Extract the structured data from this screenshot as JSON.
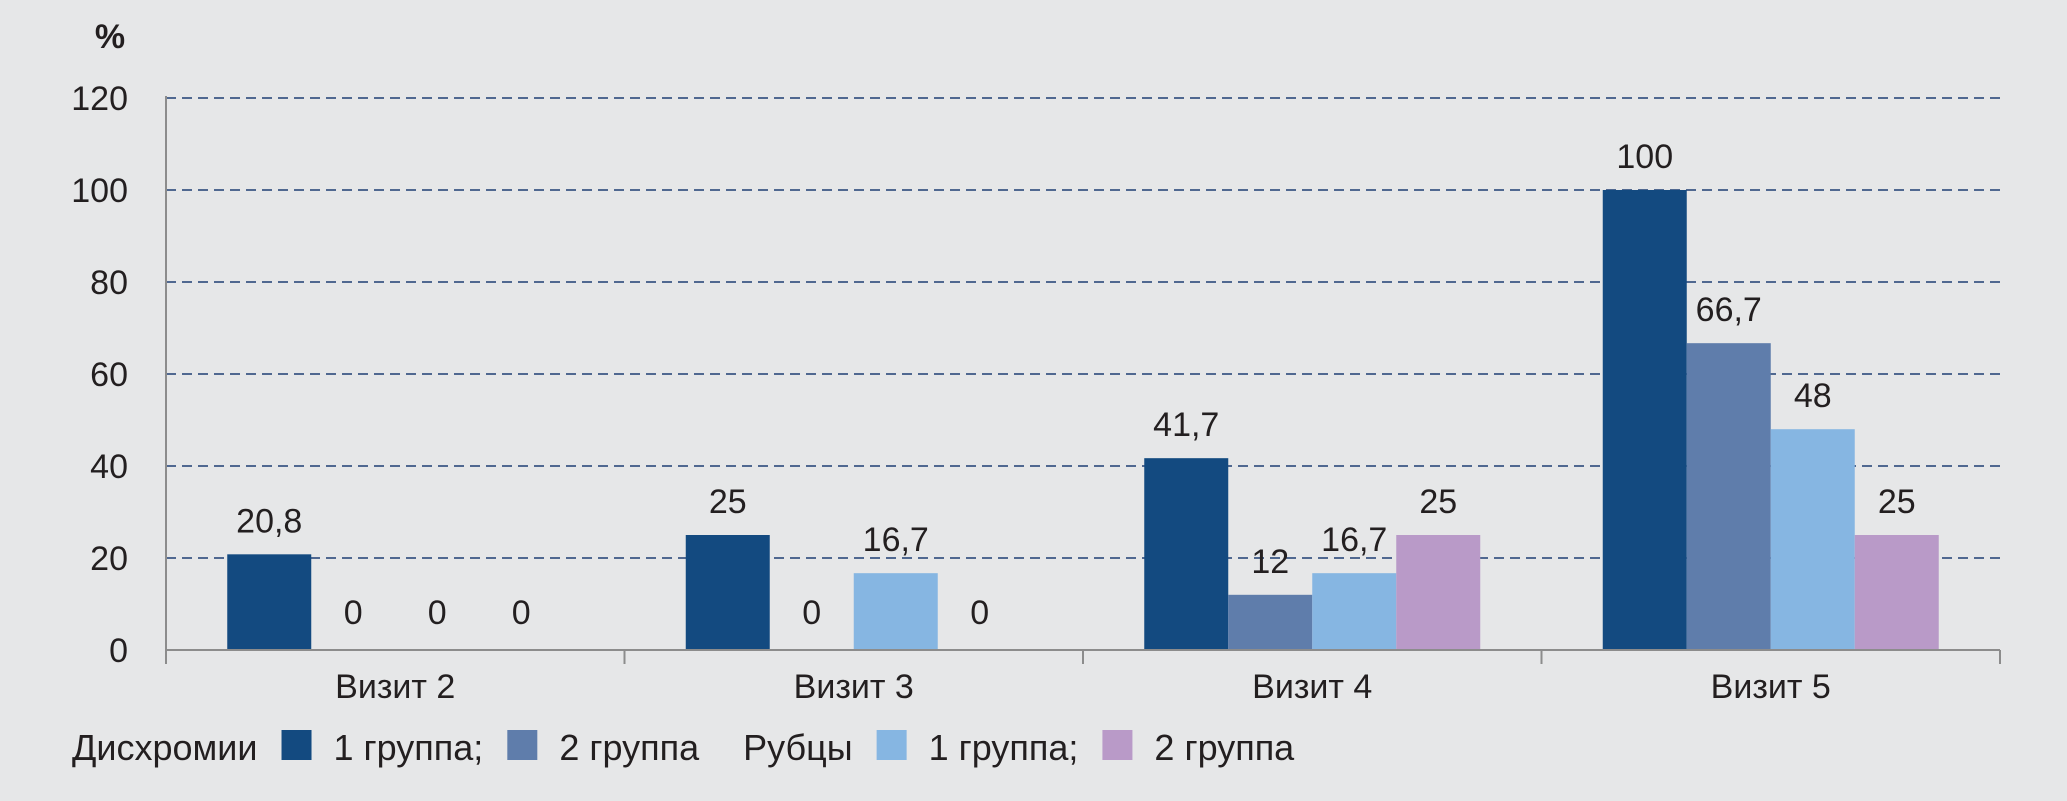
{
  "chart_data": {
    "type": "bar",
    "ylabel": "%",
    "ylim": [
      0,
      120
    ],
    "yticks": [
      "0",
      "20",
      "40",
      "60",
      "80",
      "100",
      "120"
    ],
    "grid": true,
    "legend_placement": "bottom",
    "categories": [
      "Визит 2",
      "Визит 3",
      "Визит 4",
      "Визит 5"
    ],
    "series": [
      {
        "color": "#134a80",
        "values": [
          20.8,
          25,
          41.7,
          100
        ],
        "labels": [
          "20,8",
          "25",
          "41,7",
          "100"
        ]
      },
      {
        "color": "#5f7dab",
        "values": [
          0,
          0,
          12,
          66.7
        ],
        "labels": [
          "0",
          "0",
          "12",
          "66,7"
        ]
      },
      {
        "color": "#86b6e2",
        "values": [
          0,
          16.7,
          16.7,
          48
        ],
        "labels": [
          "0",
          "16,7",
          "16,7",
          "48"
        ]
      },
      {
        "color": "#b99ac8",
        "values": [
          0,
          0,
          25,
          25
        ],
        "labels": [
          "0",
          "0",
          "25",
          "25"
        ]
      }
    ],
    "legend": {
      "groups": [
        {
          "title": "Дисхромии",
          "items": [
            {
              "label": "1 группа;",
              "color": "#134a80"
            },
            {
              "label": "2 группа",
              "color": "#5f7dab"
            }
          ]
        },
        {
          "title": "Рубцы",
          "items": [
            {
              "label": "1 группа;",
              "color": "#86b6e2"
            },
            {
              "label": "2 группа",
              "color": "#b99ac8"
            }
          ]
        }
      ]
    }
  }
}
